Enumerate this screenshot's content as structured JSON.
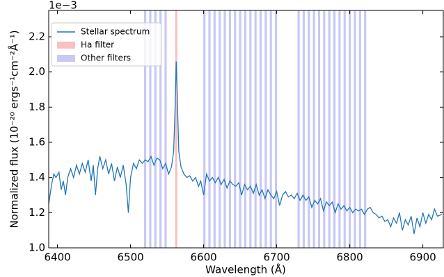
{
  "chart_data": {
    "type": "line",
    "xlabel": "Wavelength (Å)",
    "ylabel": "Normalized flux (10⁻²⁰ ergs⁻¹cm⁻²Å⁻¹)",
    "offset_label": "1e−3",
    "legend": "upper left",
    "xlim": [
      6388,
      6928
    ],
    "ylim": [
      1.0,
      2.35
    ],
    "xticks": [
      6400,
      6500,
      6600,
      6700,
      6800,
      6900
    ],
    "yticks": [
      {
        "value": 1.0,
        "label": "1.0"
      },
      1.2,
      1.4,
      1.6,
      1.8,
      {
        "value": 2.0,
        "label": "2.0"
      },
      2.2
    ],
    "filters": [
      {
        "name": "Ha filter",
        "color": "#f8c0c0",
        "width": 3,
        "centers": [
          6562.5
        ]
      },
      {
        "name": "Other filters",
        "color": "#c8c8f4",
        "width": 3,
        "centers": [
          6520,
          6527,
          6534,
          6541,
          6548,
          6601,
          6608,
          6615,
          6622,
          6629,
          6636,
          6643,
          6650,
          6657,
          6664,
          6671,
          6678,
          6685,
          6692,
          6699,
          6730,
          6737,
          6744,
          6751,
          6758,
          6765,
          6772,
          6779,
          6786,
          6793,
          6800,
          6807,
          6814,
          6821
        ]
      }
    ],
    "x": [
      6388,
      6392,
      6395,
      6398,
      6402,
      6405,
      6408,
      6411,
      6414,
      6418,
      6422,
      6426,
      6430,
      6434,
      6438,
      6442,
      6446,
      6449,
      6452,
      6455,
      6458,
      6462,
      6466,
      6470,
      6474,
      6478,
      6482,
      6486,
      6490,
      6494,
      6497,
      6500,
      6504,
      6508,
      6512,
      6516,
      6520,
      6524,
      6528,
      6532,
      6536,
      6540,
      6544,
      6548,
      6552,
      6556,
      6559,
      6561,
      6562.5,
      6564,
      6566,
      6569,
      6573,
      6577,
      6581,
      6585,
      6589,
      6593,
      6596,
      6600,
      6604,
      6608,
      6612,
      6616,
      6620,
      6624,
      6628,
      6632,
      6636,
      6640,
      6644,
      6648,
      6652,
      6656,
      6660,
      6664,
      6668,
      6672,
      6676,
      6680,
      6684,
      6688,
      6692,
      6696,
      6700,
      6704,
      6708,
      6712,
      6716,
      6720,
      6724,
      6728,
      6732,
      6736,
      6740,
      6744,
      6748,
      6752,
      6756,
      6760,
      6764,
      6768,
      6772,
      6776,
      6780,
      6784,
      6788,
      6792,
      6796,
      6800,
      6804,
      6808,
      6812,
      6816,
      6820,
      6824,
      6828,
      6832,
      6836,
      6840,
      6844,
      6848,
      6852,
      6856,
      6860,
      6864,
      6868,
      6872,
      6876,
      6880,
      6884,
      6888,
      6892,
      6896,
      6900,
      6904,
      6908,
      6912,
      6916,
      6920,
      6926
    ],
    "series": [
      {
        "name": "Stellar spectrum",
        "color": "#1f77b4",
        "values": [
          1.25,
          1.36,
          1.42,
          1.4,
          1.43,
          1.33,
          1.38,
          1.3,
          1.4,
          1.45,
          1.4,
          1.47,
          1.42,
          1.48,
          1.43,
          1.5,
          1.38,
          1.47,
          1.3,
          1.45,
          1.52,
          1.45,
          1.5,
          1.42,
          1.48,
          1.38,
          1.46,
          1.4,
          1.47,
          1.36,
          1.2,
          1.4,
          1.48,
          1.45,
          1.5,
          1.48,
          1.5,
          1.49,
          1.52,
          1.47,
          1.51,
          1.5,
          1.45,
          1.48,
          1.42,
          1.46,
          1.55,
          1.8,
          2.06,
          1.85,
          1.55,
          1.46,
          1.42,
          1.4,
          1.41,
          1.38,
          1.4,
          1.35,
          1.38,
          1.3,
          1.42,
          1.38,
          1.4,
          1.37,
          1.4,
          1.36,
          1.39,
          1.34,
          1.38,
          1.36,
          1.35,
          1.37,
          1.3,
          1.36,
          1.33,
          1.35,
          1.31,
          1.36,
          1.3,
          1.33,
          1.28,
          1.33,
          1.3,
          1.28,
          1.32,
          1.24,
          1.3,
          1.32,
          1.29,
          1.3,
          1.28,
          1.31,
          1.27,
          1.3,
          1.27,
          1.29,
          1.23,
          1.27,
          1.25,
          1.28,
          1.21,
          1.26,
          1.24,
          1.26,
          1.2,
          1.25,
          1.22,
          1.24,
          1.21,
          1.23,
          1.2,
          1.22,
          1.21,
          1.22,
          1.19,
          1.22,
          1.23,
          1.2,
          1.19,
          1.17,
          1.18,
          1.15,
          1.16,
          1.12,
          1.17,
          1.14,
          1.2,
          1.1,
          1.16,
          1.13,
          1.18,
          1.08,
          1.17,
          1.12,
          1.2,
          1.14,
          1.19,
          1.16,
          1.22,
          1.18,
          1.19
        ]
      }
    ]
  }
}
